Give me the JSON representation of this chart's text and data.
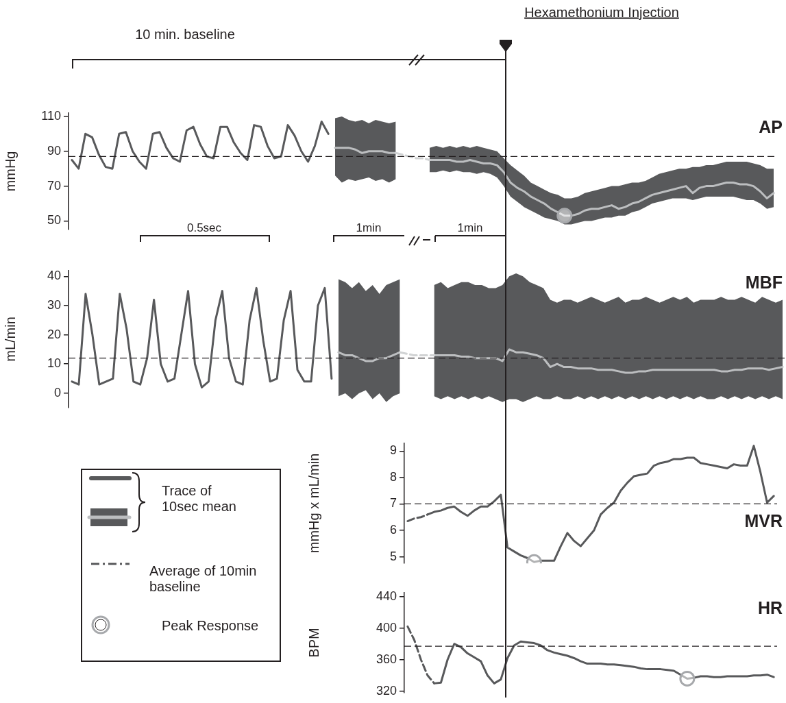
{
  "chart_data": [
    {
      "type": "line",
      "ylabel": "mmHg",
      "ylim": [
        45,
        112
      ],
      "yticks": [
        50,
        70,
        90,
        110
      ],
      "tick_labels": "y",
      "categories": [
        null,
        null,
        null,
        null,
        null,
        null,
        null,
        null,
        null,
        null,
        null,
        null,
        null,
        null,
        null,
        null,
        null,
        null,
        null,
        null,
        null,
        null,
        null,
        null,
        null,
        null,
        null,
        null,
        null,
        null,
        null,
        null,
        null,
        null,
        null,
        null,
        null,
        null,
        null,
        null,
        null,
        null,
        null,
        null,
        null,
        null,
        null,
        null,
        null,
        null,
        null,
        null,
        null,
        null,
        null,
        null,
        null,
        null,
        null,
        null,
        null,
        null,
        null,
        null,
        null,
        null,
        null,
        null,
        null,
        null,
        null,
        null,
        null,
        null,
        null,
        null,
        null,
        null,
        null,
        null,
        null,
        null,
        null,
        null,
        null,
        null,
        null,
        null,
        null,
        null,
        null,
        null,
        null,
        null,
        null,
        null,
        null,
        null,
        null,
        null,
        null,
        null,
        null,
        null,
        null
      ],
      "series": [
        {
          "color": "#58595b",
          "values": [
            85,
            80,
            100,
            98,
            88,
            81,
            80,
            100,
            101,
            90,
            84,
            80,
            100,
            101,
            92,
            86,
            84,
            102,
            104,
            94,
            87,
            86,
            104,
            104,
            95,
            89,
            85,
            105,
            104,
            93,
            86,
            87,
            105,
            99,
            90,
            84,
            93,
            107,
            100,
            null,
            null,
            null,
            null,
            null,
            null,
            null,
            null,
            null,
            null,
            null,
            null,
            null,
            null,
            null,
            null,
            null,
            null,
            null,
            null,
            null,
            null,
            null,
            null,
            null,
            null,
            null,
            null,
            null,
            null,
            null,
            null,
            null,
            null,
            null,
            null,
            null,
            null,
            null,
            null,
            null,
            null,
            null,
            null,
            null,
            null,
            null,
            null,
            null,
            null,
            null,
            null,
            null,
            null,
            null,
            null,
            null,
            null,
            null,
            null,
            null,
            null,
            null,
            null,
            null,
            null
          ]
        },
        {
          "color": "#bcbec0",
          "values": [
            null,
            null,
            null,
            null,
            null,
            null,
            null,
            null,
            null,
            null,
            null,
            null,
            null,
            null,
            null,
            null,
            null,
            null,
            null,
            null,
            null,
            null,
            null,
            null,
            null,
            null,
            null,
            null,
            null,
            null,
            null,
            null,
            null,
            null,
            null,
            null,
            null,
            null,
            null,
            92,
            92,
            92,
            91,
            89,
            90,
            90,
            90,
            89,
            89,
            null,
            null,
            null,
            null,
            85,
            85,
            85,
            85,
            84,
            84,
            85,
            84,
            83,
            83,
            82,
            78,
            72,
            69,
            67,
            64,
            62,
            60,
            57,
            55,
            53,
            53,
            54,
            56,
            57,
            57,
            58,
            59,
            57,
            58,
            60,
            61,
            63,
            65,
            66,
            67,
            68,
            69,
            70,
            66,
            69,
            70,
            70,
            71,
            72,
            72,
            71,
            71,
            70,
            67,
            63,
            66
          ],
          "upper": [
            null,
            null,
            null,
            null,
            null,
            null,
            null,
            null,
            null,
            null,
            null,
            null,
            null,
            null,
            null,
            null,
            null,
            null,
            null,
            null,
            null,
            null,
            null,
            null,
            null,
            null,
            null,
            null,
            null,
            null,
            null,
            null,
            null,
            null,
            null,
            null,
            null,
            null,
            null,
            109,
            110,
            108,
            107,
            108,
            106,
            108,
            107,
            106,
            107,
            null,
            null,
            null,
            null,
            92,
            93,
            92,
            93,
            92,
            93,
            92,
            93,
            92,
            91,
            90,
            86,
            82,
            79,
            76,
            72,
            70,
            68,
            66,
            65,
            63,
            63,
            64,
            66,
            67,
            68,
            69,
            70,
            70,
            71,
            72,
            72,
            73,
            75,
            77,
            78,
            79,
            80,
            80,
            81,
            81,
            82,
            82,
            83,
            84,
            84,
            84,
            84,
            83,
            82,
            80,
            80
          ],
          "lower": [
            null,
            null,
            null,
            null,
            null,
            null,
            null,
            null,
            null,
            null,
            null,
            null,
            null,
            null,
            null,
            null,
            null,
            null,
            null,
            null,
            null,
            null,
            null,
            null,
            null,
            null,
            null,
            null,
            null,
            null,
            null,
            null,
            null,
            null,
            null,
            null,
            null,
            null,
            null,
            76,
            72,
            74,
            73,
            74,
            75,
            73,
            74,
            72,
            74,
            null,
            null,
            null,
            null,
            78,
            78,
            79,
            78,
            79,
            78,
            78,
            77,
            78,
            77,
            75,
            70,
            64,
            61,
            58,
            56,
            54,
            52,
            51,
            50,
            48,
            48,
            49,
            50,
            50,
            51,
            52,
            52,
            53,
            53,
            55,
            56,
            58,
            60,
            61,
            62,
            63,
            63,
            63,
            62,
            63,
            64,
            64,
            64,
            64,
            64,
            63,
            62,
            62,
            60,
            57,
            58
          ]
        },
        {
          "color": "#d1d3d4",
          "line_style": "dashed",
          "values": [
            null,
            null,
            null,
            null,
            null,
            null,
            null,
            null,
            null,
            null,
            null,
            null,
            null,
            null,
            null,
            null,
            null,
            null,
            null,
            null,
            null,
            null,
            null,
            null,
            null,
            null,
            null,
            null,
            null,
            null,
            null,
            null,
            null,
            null,
            null,
            null,
            null,
            null,
            null,
            null,
            null,
            null,
            null,
            null,
            null,
            null,
            null,
            null,
            89,
            88,
            87,
            86,
            86,
            85,
            null,
            null,
            null,
            null,
            null,
            null,
            null,
            null,
            null,
            null,
            null,
            null,
            null,
            null,
            null,
            null,
            null,
            null,
            null,
            null,
            null,
            null,
            null,
            null,
            null,
            null,
            null,
            null,
            null,
            null,
            null,
            null,
            null,
            null,
            null,
            null,
            null,
            null,
            null,
            null,
            null,
            null,
            null,
            null,
            null,
            null,
            null,
            null,
            null,
            null,
            null
          ]
        },
        {
          "type": "scatter",
          "marker": "circle",
          "color": "#a7a9ac",
          "values": [
            null,
            null,
            null,
            null,
            null,
            null,
            null,
            null,
            null,
            null,
            null,
            null,
            null,
            null,
            null,
            null,
            null,
            null,
            null,
            null,
            null,
            null,
            null,
            null,
            null,
            null,
            null,
            null,
            null,
            null,
            null,
            null,
            null,
            null,
            null,
            null,
            null,
            null,
            null,
            null,
            null,
            null,
            null,
            null,
            null,
            null,
            null,
            null,
            null,
            null,
            null,
            null,
            null,
            null,
            null,
            null,
            null,
            null,
            null,
            null,
            null,
            null,
            null,
            null,
            null,
            null,
            null,
            null,
            null,
            null,
            null,
            null,
            null,
            53,
            null,
            null,
            null,
            null,
            null,
            null,
            null,
            null,
            null,
            null,
            null,
            null,
            null,
            null,
            null,
            null,
            null,
            null,
            null,
            null,
            null,
            null,
            null,
            null,
            null,
            null,
            null,
            null,
            null,
            null,
            null
          ]
        }
      ],
      "ref_lines": [
        {
          "axis": "y",
          "value": 87,
          "color": "#231f20",
          "line_style": "dashed"
        }
      ],
      "annotations": [
        "AP",
        "10 min. baseline",
        "Hexamethonium Injection",
        "0.5sec",
        "1min",
        "1min"
      ]
    },
    {
      "type": "line",
      "ylabel": "mL/min",
      "ylim": [
        -5,
        42
      ],
      "yticks": [
        0,
        10,
        20,
        30,
        40
      ],
      "tick_labels": "y",
      "categories": [
        null,
        null,
        null,
        null,
        null,
        null,
        null,
        null,
        null,
        null,
        null,
        null,
        null,
        null,
        null,
        null,
        null,
        null,
        null,
        null,
        null,
        null,
        null,
        null,
        null,
        null,
        null,
        null,
        null,
        null,
        null,
        null,
        null,
        null,
        null,
        null,
        null,
        null,
        null,
        null,
        null,
        null,
        null,
        null,
        null,
        null,
        null,
        null,
        null,
        null,
        null,
        null,
        null,
        null,
        null,
        null,
        null,
        null,
        null,
        null,
        null,
        null,
        null,
        null,
        null,
        null,
        null,
        null,
        null,
        null,
        null,
        null,
        null,
        null,
        null,
        null,
        null,
        null,
        null,
        null,
        null,
        null,
        null,
        null,
        null,
        null,
        null,
        null,
        null,
        null,
        null,
        null,
        null,
        null,
        null,
        null,
        null,
        null,
        null,
        null,
        null,
        null,
        null,
        null,
        null
      ],
      "series": [
        {
          "color": "#58595b",
          "values": [
            4,
            3,
            34,
            20,
            3,
            4,
            5,
            34,
            22,
            4,
            3,
            12,
            32,
            10,
            4,
            5,
            20,
            35,
            10,
            2,
            4,
            25,
            35,
            12,
            4,
            3,
            25,
            36,
            18,
            4,
            5,
            25,
            35,
            8,
            4,
            4,
            30,
            36,
            5,
            null,
            null,
            null,
            null,
            null,
            null,
            null,
            null,
            null,
            null,
            null,
            null,
            null,
            null,
            null,
            null,
            null,
            null,
            null,
            null,
            null,
            null,
            null,
            null,
            null,
            null,
            null,
            null,
            null,
            null,
            null,
            null,
            null,
            null,
            null,
            null,
            null,
            null,
            null,
            null,
            null,
            null,
            null,
            null,
            null,
            null,
            null,
            null,
            null,
            null,
            null,
            null,
            null,
            null,
            null,
            null,
            null,
            null,
            null,
            null,
            null,
            null,
            null,
            null,
            null,
            null
          ]
        },
        {
          "color": "#bcbec0",
          "values": [
            null,
            null,
            null,
            null,
            null,
            null,
            null,
            null,
            null,
            null,
            null,
            null,
            null,
            null,
            null,
            null,
            null,
            null,
            null,
            null,
            null,
            null,
            null,
            null,
            null,
            null,
            null,
            null,
            null,
            null,
            null,
            null,
            null,
            null,
            null,
            null,
            null,
            null,
            null,
            14,
            13,
            13,
            12,
            11,
            11,
            12,
            12,
            13,
            14,
            null,
            null,
            null,
            null,
            13,
            13,
            13,
            13,
            12.5,
            12.5,
            12,
            12,
            12,
            12,
            11,
            15,
            14,
            14,
            13.5,
            13,
            12,
            9,
            10,
            9,
            9,
            8.5,
            8.5,
            8.5,
            8,
            8,
            8,
            7.5,
            7,
            7,
            7.5,
            7.5,
            8,
            8,
            8,
            8,
            8,
            8,
            8,
            8,
            8,
            8,
            7.5,
            7.5,
            8,
            8,
            8.5,
            8.5,
            8.5,
            8,
            8.5,
            9
          ],
          "upper": [
            null,
            null,
            null,
            null,
            null,
            null,
            null,
            null,
            null,
            null,
            null,
            null,
            null,
            null,
            null,
            null,
            null,
            null,
            null,
            null,
            null,
            null,
            null,
            null,
            null,
            null,
            null,
            null,
            null,
            null,
            null,
            null,
            null,
            null,
            null,
            null,
            null,
            null,
            null,
            39,
            38,
            36,
            38,
            35,
            37,
            34,
            37,
            38,
            39,
            null,
            null,
            null,
            null,
            37,
            38,
            36,
            37,
            38,
            38,
            37,
            37,
            36,
            36,
            37,
            40,
            41,
            40,
            38,
            37,
            36,
            32,
            31,
            32,
            32,
            31,
            32,
            33,
            32,
            31,
            32,
            33,
            31,
            32,
            32,
            33,
            32,
            31,
            32,
            33,
            32,
            33,
            31,
            32,
            32,
            32,
            33,
            32,
            32,
            33,
            32,
            31,
            33,
            32,
            31,
            32
          ],
          "lower": [
            null,
            null,
            null,
            null,
            null,
            null,
            null,
            null,
            null,
            null,
            null,
            null,
            null,
            null,
            null,
            null,
            null,
            null,
            null,
            null,
            null,
            null,
            null,
            null,
            null,
            null,
            null,
            null,
            null,
            null,
            null,
            null,
            null,
            null,
            null,
            null,
            null,
            null,
            null,
            -1,
            0,
            -2,
            0,
            1,
            -2,
            0,
            -3,
            -1,
            0,
            null,
            null,
            null,
            null,
            -1,
            -2,
            -1,
            -2,
            -1,
            -2,
            -1,
            -2,
            -1,
            -2,
            -3,
            -2,
            -2,
            -3,
            -2,
            -1,
            -2,
            -2,
            -1,
            -2,
            -2,
            -1,
            -2,
            -1,
            -2,
            -1,
            -2,
            -1,
            -2,
            -1,
            -2,
            -1,
            -2,
            -1,
            -2,
            -1,
            -2,
            -1,
            -2,
            -1,
            -2,
            -2,
            -1,
            -2,
            -1,
            -2,
            -1,
            -2,
            -1,
            -2,
            -1,
            -2
          ]
        },
        {
          "color": "#d1d3d4",
          "line_style": "dashed",
          "values": [
            null,
            null,
            null,
            null,
            null,
            null,
            null,
            null,
            null,
            null,
            null,
            null,
            null,
            null,
            null,
            null,
            null,
            null,
            null,
            null,
            null,
            null,
            null,
            null,
            null,
            null,
            null,
            null,
            null,
            null,
            null,
            null,
            null,
            null,
            null,
            null,
            null,
            null,
            null,
            null,
            null,
            null,
            null,
            null,
            null,
            null,
            null,
            null,
            14,
            13.5,
            13,
            13,
            13,
            13,
            null,
            null,
            null,
            null,
            null,
            null,
            null,
            null,
            null,
            null,
            null,
            null,
            null,
            null,
            null,
            null,
            null,
            null,
            null,
            null,
            null,
            null,
            null,
            null,
            null,
            null,
            null,
            null,
            null,
            null,
            null,
            null,
            null,
            null,
            null,
            null,
            null,
            null,
            null,
            null,
            null,
            null,
            null,
            null,
            null,
            null,
            null,
            null,
            null,
            null,
            null
          ]
        }
      ],
      "ref_lines": [
        {
          "axis": "y",
          "value": 12,
          "color": "#231f20",
          "line_style": "dashed"
        }
      ],
      "annotations": [
        "MBF"
      ]
    },
    {
      "type": "line",
      "ylabel": "mmHg x mL/min",
      "ylim": [
        4.75,
        9.3
      ],
      "yticks": [
        5,
        6,
        7,
        8,
        9
      ],
      "tick_labels": "y",
      "categories": [
        null,
        null,
        null,
        null,
        null,
        null,
        null,
        null,
        null,
        null,
        null,
        null,
        null,
        null,
        null,
        null,
        null,
        null,
        null,
        null,
        null,
        null,
        null,
        null,
        null,
        null,
        null,
        null,
        null,
        null,
        null,
        null,
        null,
        null,
        null,
        null,
        null,
        null,
        null,
        null,
        null,
        null,
        null,
        null,
        null,
        null,
        null,
        null,
        null,
        null,
        null,
        null,
        null,
        null,
        null,
        null
      ],
      "series": [
        {
          "color": "#58595b",
          "line_style": "dashed",
          "values": [
            6.35,
            6.45,
            6.5,
            6.6,
            null,
            null,
            null,
            null,
            null,
            null,
            null,
            null,
            null,
            null,
            null,
            null,
            null,
            null,
            null,
            null,
            null,
            null,
            null,
            null,
            null,
            null,
            null,
            null,
            null,
            null,
            null,
            null,
            null,
            null,
            null,
            null,
            null,
            null,
            null,
            null,
            null,
            null,
            null,
            null,
            null,
            null,
            null,
            null,
            null,
            null,
            null,
            null,
            null,
            null,
            null,
            null
          ]
        },
        {
          "color": "#58595b",
          "values": [
            null,
            null,
            null,
            6.6,
            6.7,
            6.75,
            6.85,
            6.9,
            6.7,
            6.55,
            6.75,
            6.9,
            6.9,
            7.1,
            7.35,
            5.35,
            5.2,
            5.05,
            4.95,
            4.8,
            4.85,
            4.85,
            4.85,
            5.4,
            5.9,
            5.6,
            5.4,
            5.7,
            6,
            6.6,
            6.85,
            7.05,
            7.5,
            7.8,
            8.05,
            8.1,
            8.15,
            8.45,
            8.55,
            8.6,
            8.7,
            8.7,
            8.75,
            8.75,
            8.55,
            8.5,
            8.45,
            8.4,
            8.35,
            8.5,
            8.45,
            8.45,
            9.2,
            8.2,
            7.05,
            7.3
          ]
        },
        {
          "type": "scatter",
          "marker": "circle",
          "color": "#a7a9ac",
          "values": [
            null,
            null,
            null,
            null,
            null,
            null,
            null,
            null,
            null,
            null,
            null,
            null,
            null,
            null,
            null,
            null,
            null,
            null,
            null,
            4.8,
            null,
            null,
            null,
            null,
            null,
            null,
            null,
            null,
            null,
            null,
            null,
            null,
            null,
            null,
            null,
            null,
            null,
            null,
            null,
            null,
            null,
            null,
            null,
            null,
            null,
            null,
            null,
            null,
            null,
            null,
            null,
            null,
            null,
            null,
            null,
            null
          ]
        }
      ],
      "ref_lines": [
        {
          "axis": "y",
          "value": 7,
          "color": "#231f20",
          "line_style": "dashed"
        }
      ],
      "annotations": [
        "MVR"
      ]
    },
    {
      "type": "line",
      "ylabel": "BPM",
      "ylim": [
        318,
        445
      ],
      "yticks": [
        320,
        360,
        400,
        440
      ],
      "tick_labels": "y",
      "categories": [
        null,
        null,
        null,
        null,
        null,
        null,
        null,
        null,
        null,
        null,
        null,
        null,
        null,
        null,
        null,
        null,
        null,
        null,
        null,
        null,
        null,
        null,
        null,
        null,
        null,
        null,
        null,
        null,
        null,
        null,
        null,
        null,
        null,
        null,
        null,
        null,
        null,
        null,
        null,
        null,
        null,
        null,
        null,
        null,
        null,
        null,
        null,
        null,
        null,
        null,
        null,
        null,
        null,
        null,
        null,
        null
      ],
      "series": [
        {
          "color": "#58595b",
          "line_style": "dashed",
          "values": [
            402,
            385,
            360,
            340,
            330,
            null,
            null,
            null,
            null,
            null,
            null,
            null,
            null,
            null,
            null,
            null,
            null,
            null,
            null,
            null,
            null,
            null,
            null,
            null,
            null,
            null,
            null,
            null,
            null,
            null,
            null,
            null,
            null,
            null,
            null,
            null,
            null,
            null,
            null,
            null,
            null,
            null,
            null,
            null,
            null,
            null,
            null,
            null,
            null,
            null,
            null,
            null,
            null,
            null,
            null,
            null
          ]
        },
        {
          "color": "#58595b",
          "values": [
            null,
            null,
            null,
            null,
            330,
            331,
            360,
            380,
            376,
            368,
            363,
            358,
            340,
            330,
            335,
            362,
            378,
            383,
            382,
            381,
            378,
            372,
            369,
            367,
            365,
            362,
            358,
            355,
            355,
            355,
            354,
            354,
            353,
            352,
            351,
            349,
            348,
            348,
            348,
            347,
            346,
            341,
            336,
            337,
            339,
            339,
            338,
            338,
            339,
            339,
            339,
            339,
            340,
            340,
            341,
            338
          ]
        },
        {
          "type": "scatter",
          "marker": "circle",
          "color": "#a7a9ac",
          "values": [
            null,
            null,
            null,
            null,
            null,
            null,
            null,
            null,
            null,
            null,
            null,
            null,
            null,
            null,
            null,
            null,
            null,
            null,
            null,
            null,
            null,
            null,
            null,
            null,
            null,
            null,
            null,
            null,
            null,
            null,
            null,
            null,
            null,
            null,
            null,
            null,
            null,
            null,
            null,
            null,
            null,
            null,
            336,
            null,
            null,
            null,
            null,
            null,
            null,
            null,
            null,
            null,
            null,
            null,
            null,
            null
          ]
        }
      ],
      "ref_lines": [
        {
          "axis": "y",
          "value": 377,
          "color": "#231f20",
          "line_style": "dashed"
        }
      ],
      "annotations": [
        "HR"
      ]
    },
    {
      "type": "other",
      "annotations": [
        "Trace of 10sec mean",
        "Average of 10min baseline",
        "Peak Response"
      ]
    }
  ]
}
